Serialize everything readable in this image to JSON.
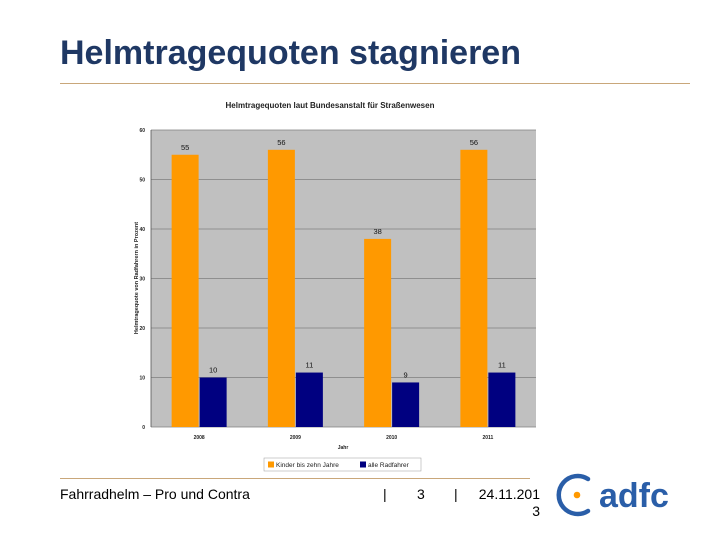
{
  "slide": {
    "title": "Helmtragequoten stagnieren"
  },
  "footer": {
    "title": "Fahrradhelm – Pro und Contra",
    "separator": "|",
    "page_number": "3",
    "date": "24.11.2013"
  },
  "logo": {
    "text": "adfc",
    "accent_color": "#ff9900",
    "text_color": "#2a5ea8"
  },
  "chart_data": {
    "type": "bar",
    "title": "Helmtragequoten laut Bundesanstalt für Straßenwesen",
    "xlabel": "Jahr",
    "ylabel": "Helmtragequote von Radfahrern in Prozent",
    "categories": [
      "2008",
      "2009",
      "2010",
      "2011"
    ],
    "ylim": [
      0,
      60
    ],
    "yticks": [
      0,
      10,
      20,
      30,
      40,
      50,
      60
    ],
    "grid": true,
    "legend_position": "bottom",
    "series": [
      {
        "name": "Kinder bis zehn Jahre",
        "color": "#ff9900",
        "values": [
          55,
          56,
          38,
          56
        ]
      },
      {
        "name": "alle Radfahrer",
        "color": "#000080",
        "values": [
          10,
          11,
          9,
          11
        ]
      }
    ]
  }
}
